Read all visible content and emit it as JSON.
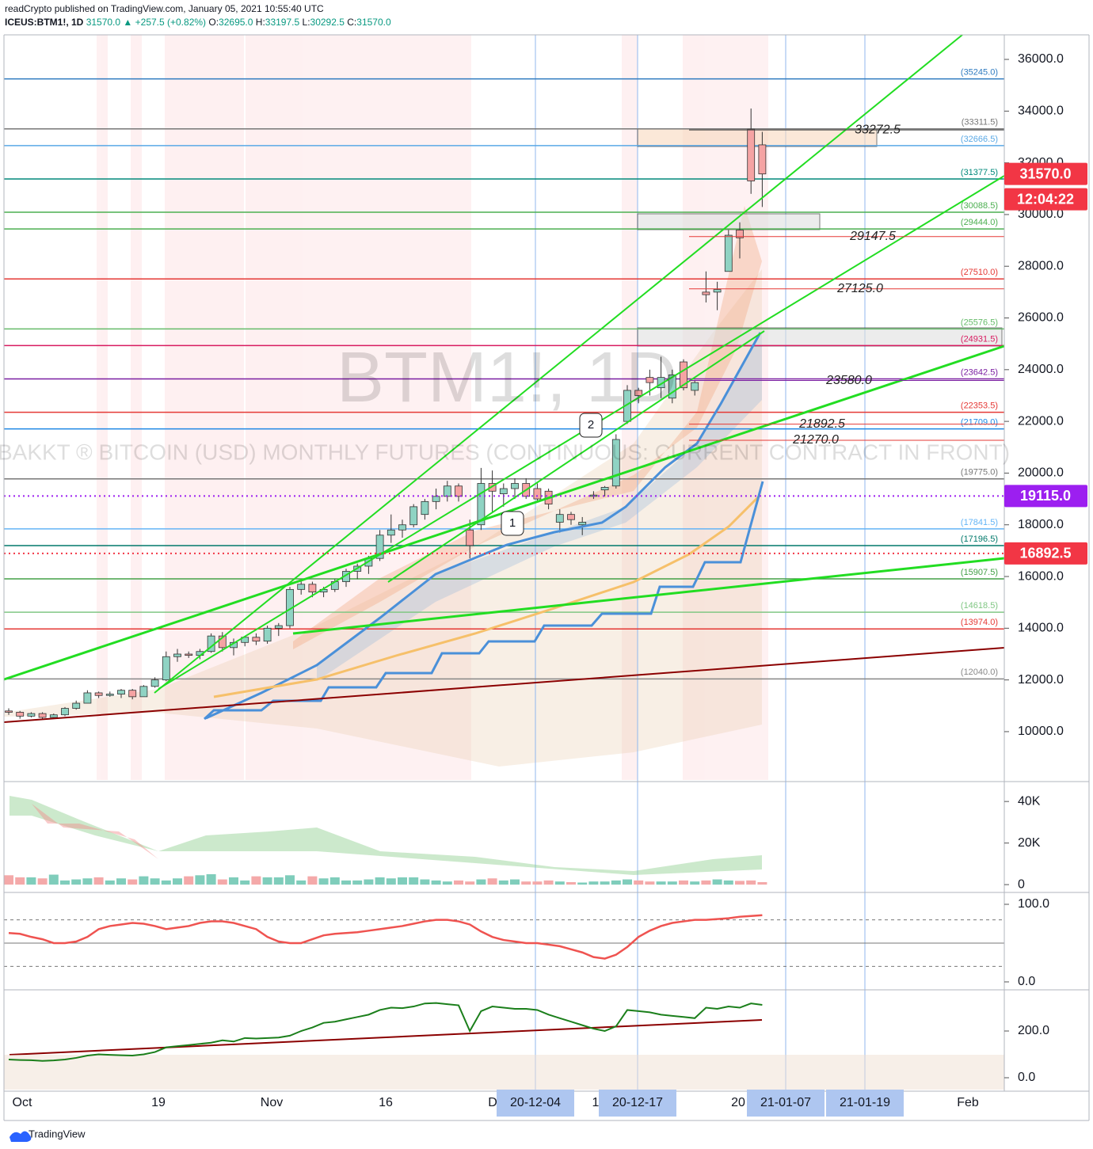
{
  "header": {
    "publisher": "readCrypto published on TradingView.com, January 05, 2021 10:55:40 UTC",
    "symbol": "ICEUS:BTM1!, 1D",
    "last": "31570.0",
    "change": "▲ +257.5 (+0.82%)",
    "ohlc": [
      [
        "O:",
        "32695.0"
      ],
      [
        "H:",
        "33197.5"
      ],
      [
        "L:",
        "30292.5"
      ],
      [
        "C:",
        "31570.0"
      ]
    ]
  },
  "footer": {
    "brand": "TradingView"
  },
  "chart_data": {
    "type": "candlestick",
    "watermark": "BTM1!, 1D",
    "description": "BAKKT ® BITCOIN (USD) MONTHLY FUTURES (CONTINUOUS: CURRENT CONTRACT IN FRONT)",
    "up_color": "#8fd3c3",
    "down_color": "#f5a3a3",
    "ylim": [
      8130,
      36950
    ],
    "yticks": [
      {
        "value": 36000,
        "label": "36000.0"
      },
      {
        "value": 34000,
        "label": "34000.0"
      },
      {
        "value": 32000,
        "label": "32000.0"
      },
      {
        "value": 30000,
        "label": "30000.0"
      },
      {
        "value": 28000,
        "label": "28000.0"
      },
      {
        "value": 26000,
        "label": "26000.0"
      },
      {
        "value": 24000,
        "label": "24000.0"
      },
      {
        "value": 22000,
        "label": "22000.0"
      },
      {
        "value": 20000,
        "label": "20000.0"
      },
      {
        "value": 18000,
        "label": "18000.0"
      },
      {
        "value": 16000,
        "label": "16000.0"
      },
      {
        "value": 14000,
        "label": "14000.0"
      },
      {
        "value": 12000,
        "label": "12000.0"
      },
      {
        "value": 10000,
        "label": "10000.0"
      }
    ],
    "open": [
      10800,
      10750,
      10600,
      10700,
      10550,
      10650,
      10900,
      11100,
      11500,
      11400,
      11450,
      11600,
      11350,
      11750,
      12000,
      12900,
      13000,
      12950,
      13100,
      13700,
      13250,
      13450,
      13650,
      13500,
      14000,
      14100,
      15500,
      15700,
      15400,
      15500,
      15800,
      16200,
      16400,
      16700,
      17600,
      17800,
      18000,
      18400,
      18900,
      19100,
      19500,
      17800,
      18000,
      19600,
      19200,
      19400,
      19600,
      19400,
      19300,
      18100,
      18400,
      18000,
      19100,
      19350,
      19500,
      22000,
      23200,
      23700,
      23300,
      22900,
      24300,
      23200,
      27000,
      27000,
      27800,
      29400,
      33300,
      32695
    ],
    "high": [
      10900,
      10800,
      10750,
      10750,
      10700,
      10950,
      11200,
      11600,
      11550,
      11550,
      11650,
      11650,
      11800,
      12100,
      13100,
      13200,
      13100,
      13200,
      13800,
      13850,
      13600,
      13700,
      13800,
      14100,
      14200,
      15600,
      15900,
      15800,
      15600,
      15900,
      16300,
      16500,
      16800,
      17800,
      18400,
      18200,
      18800,
      19000,
      19400,
      19700,
      19600,
      18200,
      20200,
      20100,
      19600,
      19800,
      19800,
      19600,
      19400,
      18600,
      18500,
      18300,
      19300,
      19500,
      21500,
      23400,
      23300,
      24000,
      24500,
      24000,
      24400,
      23600,
      27800,
      27400,
      29400,
      29700,
      34100,
      33197.5
    ],
    "low": [
      10650,
      10500,
      10550,
      10500,
      10500,
      10600,
      10850,
      11100,
      11300,
      11350,
      11300,
      11250,
      11350,
      11700,
      11950,
      12700,
      12850,
      12800,
      13050,
      13100,
      12950,
      13300,
      13350,
      13400,
      13700,
      14000,
      15300,
      15200,
      15200,
      15400,
      15600,
      15900,
      16100,
      16600,
      17300,
      17500,
      17900,
      18200,
      18600,
      18900,
      18900,
      16700,
      17800,
      18500,
      18700,
      19000,
      19000,
      18900,
      18600,
      17700,
      18000,
      17600,
      19000,
      19100,
      19400,
      21900,
      22700,
      23000,
      22900,
      22700,
      23200,
      23000,
      26600,
      26300,
      27800,
      28300,
      30800,
      30292.5
    ],
    "close": [
      10750,
      10600,
      10700,
      10550,
      10650,
      10900,
      11100,
      11500,
      11400,
      11450,
      11600,
      11350,
      11750,
      12000,
      12900,
      13000,
      12950,
      13100,
      13700,
      13250,
      13450,
      13650,
      13500,
      14000,
      14100,
      15500,
      15700,
      15400,
      15500,
      15800,
      16200,
      16400,
      16700,
      17600,
      17800,
      18000,
      18700,
      18900,
      19100,
      19500,
      19100,
      17200,
      19600,
      19300,
      19400,
      19600,
      19100,
      19000,
      18800,
      18400,
      18200,
      18100,
      19150,
      19450,
      21300,
      23200,
      23000,
      23500,
      23700,
      23800,
      23300,
      23500,
      26900,
      27100,
      29200,
      29100,
      31300,
      31570
    ],
    "levels": [
      {
        "value": 35245,
        "label": "(35245.0)",
        "color": "#2f7bc0"
      },
      {
        "value": 33311.5,
        "label": "(33311.5)",
        "color": "#777777"
      },
      {
        "value": 32666.5,
        "label": "(32666.5)",
        "color": "#5aa9e6"
      },
      {
        "value": 31377.5,
        "label": "(31377.5)",
        "color": "#00897b"
      },
      {
        "value": 30088.5,
        "label": "(30088.5)",
        "color": "#4caf50"
      },
      {
        "value": 29444,
        "label": "(29444.0)",
        "color": "#4caf50"
      },
      {
        "value": 27510,
        "label": "(27510.0)",
        "color": "#e53935"
      },
      {
        "value": 25576.5,
        "label": "(25576.5)",
        "color": "#66bb6a"
      },
      {
        "value": 24931.5,
        "label": "(24931.5)",
        "color": "#d81b60"
      },
      {
        "value": 23642.5,
        "label": "(23642.5)",
        "color": "#7b1fa2"
      },
      {
        "value": 22353.5,
        "label": "(22353.5)",
        "color": "#e53935"
      },
      {
        "value": 21709,
        "label": "(21709.0)",
        "color": "#1e88e5"
      },
      {
        "value": 19775,
        "label": "(19775.0)",
        "color": "#777777"
      },
      {
        "value": 17841.5,
        "label": "(17841.5)",
        "color": "#64b5f6"
      },
      {
        "value": 17196.5,
        "label": "(17196.5)",
        "color": "#00796b"
      },
      {
        "value": 15907.5,
        "label": "(15907.5)",
        "color": "#43a047"
      },
      {
        "value": 14618.5,
        "label": "(14618.5)",
        "color": "#81c784"
      },
      {
        "value": 13974,
        "label": "(13974.0)",
        "color": "#e53935"
      },
      {
        "value": 12040,
        "label": "(12040.0)",
        "color": "#888888"
      }
    ],
    "annotations": [
      {
        "value": 33272.5,
        "label": "33272.5",
        "color": "#444444"
      },
      {
        "value": 29147.5,
        "label": "29147.5",
        "color": "#e53935"
      },
      {
        "value": 27125,
        "label": "27125.0",
        "color": "#e53935"
      },
      {
        "value": 23580,
        "label": "23580.0",
        "color": "#7b1fa2"
      },
      {
        "value": 21892.5,
        "label": "21892.5",
        "color": "#e53935"
      },
      {
        "value": 21270,
        "label": "21270.0",
        "color": "#e53935"
      }
    ],
    "price_badges": [
      {
        "value": 31570,
        "label": "31570.0",
        "color": "#f23645",
        "dotted": false
      },
      {
        "value": 19115,
        "label": "19115.0",
        "color": "#9c1ff0",
        "dotted": true
      },
      {
        "value": 16892.5,
        "label": "16892.5",
        "color": "#f23645",
        "dotted": true
      }
    ],
    "countdown": "12:04:22",
    "callouts": [
      "1",
      "2"
    ],
    "x_labels": [
      "Oct",
      "19",
      "Nov",
      "16",
      "D",
      "1",
      "20",
      "Feb"
    ],
    "date_badges": [
      "20-12-04",
      "20-12-17",
      "21-01-07",
      "21-01-19"
    ],
    "volume": {
      "ylim": [
        -3000,
        49200
      ],
      "yticks": [
        {
          "value": 40000,
          "label": "40K"
        },
        {
          "value": 20000,
          "label": "20K"
        },
        0
      ],
      "values": [
        4500,
        3500,
        3500,
        3000,
        4800,
        2000,
        2500,
        3000,
        3500,
        2000,
        3000,
        2500,
        4000,
        3000,
        2000,
        3000,
        4000,
        4500,
        5000,
        2500,
        3500,
        2000,
        4000,
        3500,
        3500,
        4500,
        2000,
        4000,
        3000,
        3500,
        2000,
        2000,
        2500,
        3500,
        3000,
        3500,
        3500,
        2500,
        2000,
        1500,
        2000,
        1500,
        2500,
        3000,
        2000,
        2500,
        1500,
        1500,
        2000,
        1500,
        1200,
        1000,
        1500,
        1500,
        2000,
        2500,
        2000,
        1500,
        1500,
        1500,
        2000,
        1500,
        2000,
        2500,
        2000,
        1800,
        2000,
        1200
      ]
    },
    "oscillator": {
      "ylim": [
        -8.2,
        114.3
      ],
      "color": "#ef5350",
      "yticks": [
        {
          "value": 100,
          "label": "100.0"
        },
        {
          "value": 0,
          "label": "0.0"
        }
      ],
      "guides": [
        80,
        50,
        20
      ],
      "values": [
        63,
        62,
        58,
        55,
        50,
        50,
        52,
        58,
        68,
        72,
        74,
        76,
        75,
        72,
        68,
        70,
        72,
        76,
        78,
        78,
        76,
        72,
        68,
        58,
        52,
        50,
        50,
        55,
        60,
        62,
        63,
        64,
        66,
        68,
        70,
        72,
        75,
        78,
        80,
        80,
        78,
        74,
        65,
        58,
        54,
        52,
        50,
        50,
        48,
        46,
        42,
        38,
        32,
        30,
        35,
        45,
        58,
        66,
        72,
        76,
        78,
        80,
        80,
        81,
        82,
        84,
        85,
        86
      ]
    },
    "strength": {
      "ylim": [
        -57.6,
        369.5
      ],
      "color": "#1b7f1b",
      "yticks": [
        {
          "value": 200,
          "label": "200.0"
        },
        {
          "value": 0,
          "label": "0.0"
        }
      ],
      "values": [
        78,
        76,
        75,
        72,
        74,
        78,
        85,
        95,
        100,
        98,
        96,
        95,
        100,
        110,
        130,
        135,
        140,
        145,
        150,
        160,
        155,
        170,
        168,
        170,
        172,
        180,
        200,
        215,
        235,
        240,
        250,
        260,
        270,
        290,
        300,
        298,
        305,
        318,
        320,
        315,
        310,
        200,
        285,
        305,
        300,
        295,
        295,
        290,
        270,
        255,
        240,
        225,
        210,
        200,
        220,
        290,
        285,
        280,
        270,
        265,
        260,
        255,
        300,
        295,
        305,
        300,
        318,
        312
      ]
    }
  }
}
